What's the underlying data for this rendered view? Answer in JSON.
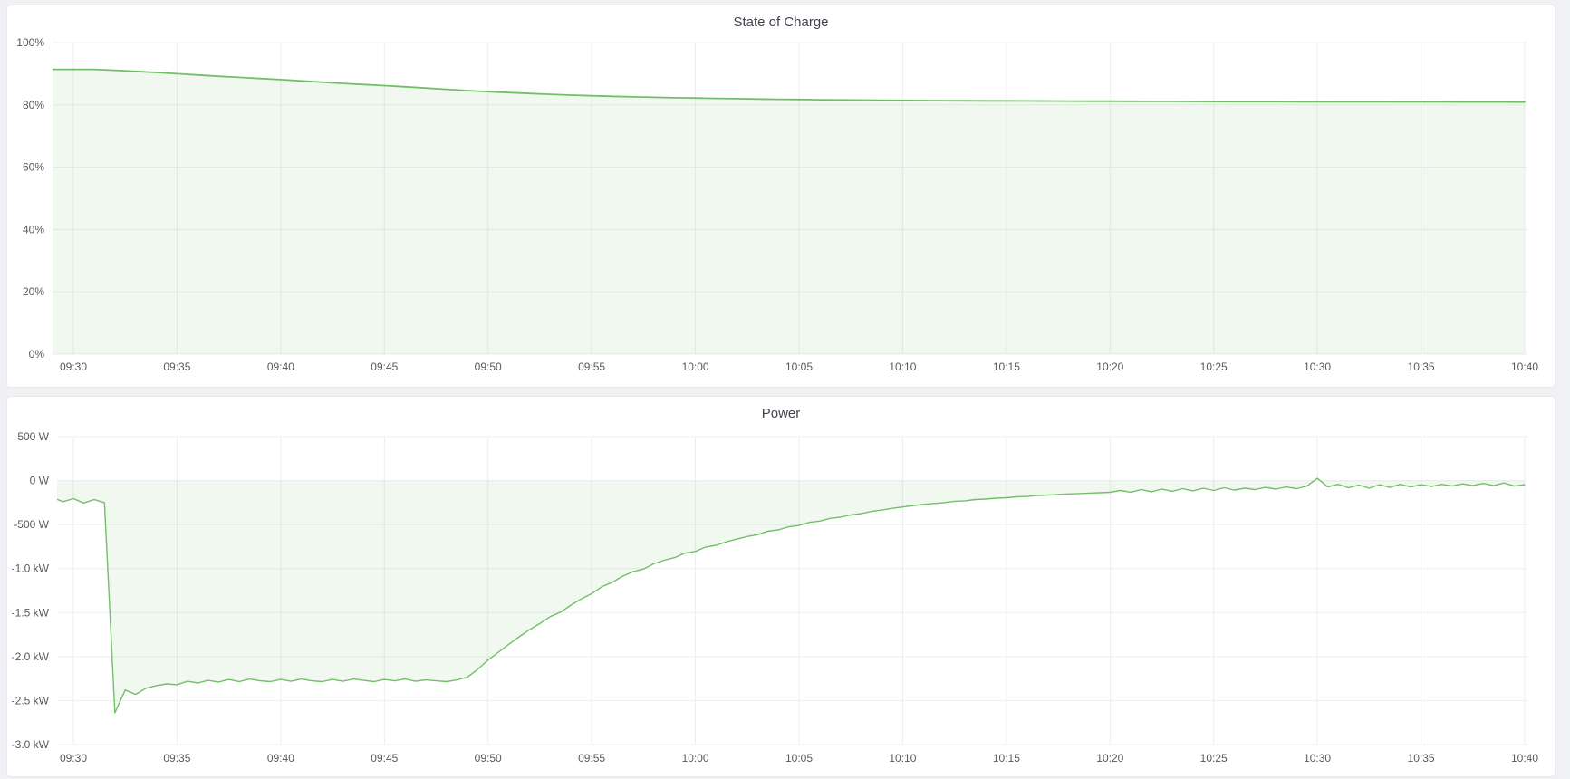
{
  "page": {
    "background_color": "#eff1f5",
    "panel_background": "#ffffff",
    "accent_green": "#73bf69"
  },
  "chart_data": [
    {
      "type": "area",
      "title": "State of Charge",
      "unit": "percent",
      "legend": "none",
      "grid": true,
      "line_color": "#73bf69",
      "fill_color": "rgba(115,191,105,0.10)",
      "y_range": [
        0,
        100
      ],
      "x_range": [
        "09:29",
        "10:40"
      ],
      "x_tick_labels": [
        "09:30",
        "09:35",
        "09:40",
        "09:45",
        "09:50",
        "09:55",
        "10:00",
        "10:05",
        "10:10",
        "10:15",
        "10:20",
        "10:25",
        "10:30",
        "10:35",
        "10:40"
      ],
      "y_ticks": [
        {
          "value": 100,
          "label": "100%"
        },
        {
          "value": 80,
          "label": "80%"
        },
        {
          "value": 60,
          "label": "60%"
        },
        {
          "value": 40,
          "label": "40%"
        },
        {
          "value": 20,
          "label": "20%"
        },
        {
          "value": 0,
          "label": "0%"
        }
      ],
      "series": [
        {
          "name": "State of Charge",
          "points": [
            [
              "09:29",
              91.4
            ],
            [
              "09:30",
              91.4
            ],
            [
              "09:31",
              91.4
            ],
            [
              "09:32",
              91.1
            ],
            [
              "09:33",
              90.75
            ],
            [
              "09:34",
              90.4
            ],
            [
              "09:35",
              90.0
            ],
            [
              "09:36",
              89.6
            ],
            [
              "09:37",
              89.2
            ],
            [
              "09:38",
              88.85
            ],
            [
              "09:39",
              88.45
            ],
            [
              "09:40",
              88.1
            ],
            [
              "09:41",
              87.7
            ],
            [
              "09:42",
              87.3
            ],
            [
              "09:43",
              86.9
            ],
            [
              "09:44",
              86.55
            ],
            [
              "09:45",
              86.2
            ],
            [
              "09:46",
              85.8
            ],
            [
              "09:47",
              85.4
            ],
            [
              "09:48",
              85.0
            ],
            [
              "09:49",
              84.6
            ],
            [
              "09:50",
              84.25
            ],
            [
              "09:51",
              83.95
            ],
            [
              "09:52",
              83.65
            ],
            [
              "09:53",
              83.4
            ],
            [
              "09:54",
              83.15
            ],
            [
              "09:55",
              82.95
            ],
            [
              "09:56",
              82.75
            ],
            [
              "09:57",
              82.6
            ],
            [
              "09:58",
              82.45
            ],
            [
              "09:59",
              82.3
            ],
            [
              "10:00",
              82.2
            ],
            [
              "10:01",
              82.1
            ],
            [
              "10:02",
              82.0
            ],
            [
              "10:03",
              81.9
            ],
            [
              "10:04",
              81.8
            ],
            [
              "10:05",
              81.75
            ],
            [
              "10:06",
              81.65
            ],
            [
              "10:07",
              81.6
            ],
            [
              "10:08",
              81.55
            ],
            [
              "10:09",
              81.5
            ],
            [
              "10:10",
              81.45
            ],
            [
              "10:11",
              81.4
            ],
            [
              "10:12",
              81.38
            ],
            [
              "10:13",
              81.35
            ],
            [
              "10:14",
              81.32
            ],
            [
              "10:15",
              81.3
            ],
            [
              "10:16",
              81.28
            ],
            [
              "10:17",
              81.25
            ],
            [
              "10:18",
              81.23
            ],
            [
              "10:19",
              81.2
            ],
            [
              "10:20",
              81.18
            ],
            [
              "10:21",
              81.16
            ],
            [
              "10:22",
              81.14
            ],
            [
              "10:23",
              81.12
            ],
            [
              "10:24",
              81.1
            ],
            [
              "10:25",
              81.08
            ],
            [
              "10:26",
              81.06
            ],
            [
              "10:27",
              81.05
            ],
            [
              "10:28",
              81.04
            ],
            [
              "10:29",
              81.03
            ],
            [
              "10:30",
              81.02
            ],
            [
              "10:31",
              81.0
            ],
            [
              "10:32",
              80.99
            ],
            [
              "10:33",
              80.98
            ],
            [
              "10:34",
              80.97
            ],
            [
              "10:35",
              80.96
            ],
            [
              "10:36",
              80.95
            ],
            [
              "10:37",
              80.94
            ],
            [
              "10:38",
              80.93
            ],
            [
              "10:39",
              80.92
            ],
            [
              "10:40",
              80.9
            ]
          ]
        }
      ]
    },
    {
      "type": "area",
      "title": "Power",
      "unit": "watt",
      "legend": "none",
      "grid": true,
      "line_color": "#73bf69",
      "fill_color": "rgba(115,191,105,0.10)",
      "y_range": [
        -3000,
        500
      ],
      "x_range": [
        "09:29",
        "10:40"
      ],
      "x_tick_labels": [
        "09:30",
        "09:35",
        "09:40",
        "09:45",
        "09:50",
        "09:55",
        "10:00",
        "10:05",
        "10:10",
        "10:15",
        "10:20",
        "10:25",
        "10:30",
        "10:35",
        "10:40"
      ],
      "y_ticks": [
        {
          "value": 500,
          "label": "500 W"
        },
        {
          "value": 0,
          "label": "0 W"
        },
        {
          "value": -500,
          "label": "-500 W"
        },
        {
          "value": -1000,
          "label": "-1.0 kW"
        },
        {
          "value": -1500,
          "label": "-1.5 kW"
        },
        {
          "value": -2000,
          "label": "-2.0 kW"
        },
        {
          "value": -2500,
          "label": "-2.5 kW"
        },
        {
          "value": -3000,
          "label": "-3.0 kW"
        }
      ],
      "series": [
        {
          "name": "Power",
          "points": [
            [
              "09:29:00",
              -195
            ],
            [
              "09:29:30",
              -240
            ],
            [
              "09:30:00",
              -205
            ],
            [
              "09:30:30",
              -255
            ],
            [
              "09:31:00",
              -215
            ],
            [
              "09:31:30",
              -250
            ],
            [
              "09:32:00",
              -2640
            ],
            [
              "09:32:30",
              -2380
            ],
            [
              "09:33:00",
              -2430
            ],
            [
              "09:33:30",
              -2360
            ],
            [
              "09:34:00",
              -2330
            ],
            [
              "09:34:30",
              -2310
            ],
            [
              "09:35:00",
              -2320
            ],
            [
              "09:35:30",
              -2280
            ],
            [
              "09:36:00",
              -2300
            ],
            [
              "09:36:30",
              -2270
            ],
            [
              "09:37:00",
              -2290
            ],
            [
              "09:37:30",
              -2260
            ],
            [
              "09:38:00",
              -2285
            ],
            [
              "09:38:30",
              -2255
            ],
            [
              "09:39:00",
              -2275
            ],
            [
              "09:39:30",
              -2285
            ],
            [
              "09:40:00",
              -2260
            ],
            [
              "09:40:30",
              -2280
            ],
            [
              "09:41:00",
              -2255
            ],
            [
              "09:41:30",
              -2275
            ],
            [
              "09:42:00",
              -2285
            ],
            [
              "09:42:30",
              -2260
            ],
            [
              "09:43:00",
              -2280
            ],
            [
              "09:43:30",
              -2255
            ],
            [
              "09:44:00",
              -2270
            ],
            [
              "09:44:30",
              -2285
            ],
            [
              "09:45:00",
              -2260
            ],
            [
              "09:45:30",
              -2275
            ],
            [
              "09:46:00",
              -2255
            ],
            [
              "09:46:30",
              -2280
            ],
            [
              "09:47:00",
              -2265
            ],
            [
              "09:47:30",
              -2275
            ],
            [
              "09:48:00",
              -2285
            ],
            [
              "09:48:30",
              -2265
            ],
            [
              "09:49:00",
              -2235
            ],
            [
              "09:49:30",
              -2145
            ],
            [
              "09:50:00",
              -2040
            ],
            [
              "09:50:30",
              -1950
            ],
            [
              "09:51:00",
              -1860
            ],
            [
              "09:51:30",
              -1775
            ],
            [
              "09:52:00",
              -1695
            ],
            [
              "09:52:30",
              -1625
            ],
            [
              "09:53:00",
              -1545
            ],
            [
              "09:53:30",
              -1495
            ],
            [
              "09:54:00",
              -1415
            ],
            [
              "09:54:30",
              -1345
            ],
            [
              "09:55:00",
              -1285
            ],
            [
              "09:55:30",
              -1205
            ],
            [
              "09:56:00",
              -1155
            ],
            [
              "09:56:30",
              -1085
            ],
            [
              "09:57:00",
              -1035
            ],
            [
              "09:57:30",
              -1005
            ],
            [
              "09:58:00",
              -945
            ],
            [
              "09:58:30",
              -905
            ],
            [
              "09:59:00",
              -875
            ],
            [
              "09:59:30",
              -825
            ],
            [
              "10:00:00",
              -805
            ],
            [
              "10:00:30",
              -755
            ],
            [
              "10:01:00",
              -735
            ],
            [
              "10:01:30",
              -695
            ],
            [
              "10:02:00",
              -665
            ],
            [
              "10:02:30",
              -635
            ],
            [
              "10:03:00",
              -615
            ],
            [
              "10:03:30",
              -575
            ],
            [
              "10:04:00",
              -560
            ],
            [
              "10:04:30",
              -525
            ],
            [
              "10:05:00",
              -510
            ],
            [
              "10:05:30",
              -475
            ],
            [
              "10:06:00",
              -460
            ],
            [
              "10:06:30",
              -430
            ],
            [
              "10:07:00",
              -415
            ],
            [
              "10:07:30",
              -390
            ],
            [
              "10:08:00",
              -375
            ],
            [
              "10:08:30",
              -350
            ],
            [
              "10:09:00",
              -335
            ],
            [
              "10:09:30",
              -315
            ],
            [
              "10:10:00",
              -300
            ],
            [
              "10:10:30",
              -285
            ],
            [
              "10:11:00",
              -270
            ],
            [
              "10:11:30",
              -260
            ],
            [
              "10:12:00",
              -250
            ],
            [
              "10:12:30",
              -235
            ],
            [
              "10:13:00",
              -230
            ],
            [
              "10:13:30",
              -215
            ],
            [
              "10:14:00",
              -210
            ],
            [
              "10:14:30",
              -200
            ],
            [
              "10:15:00",
              -195
            ],
            [
              "10:15:30",
              -185
            ],
            [
              "10:16:00",
              -180
            ],
            [
              "10:16:30",
              -170
            ],
            [
              "10:17:00",
              -165
            ],
            [
              "10:17:30",
              -158
            ],
            [
              "10:18:00",
              -152
            ],
            [
              "10:18:30",
              -147
            ],
            [
              "10:19:00",
              -142
            ],
            [
              "10:19:30",
              -138
            ],
            [
              "10:20:00",
              -133
            ],
            [
              "10:20:30",
              -112
            ],
            [
              "10:21:00",
              -132
            ],
            [
              "10:21:30",
              -102
            ],
            [
              "10:22:00",
              -127
            ],
            [
              "10:22:30",
              -97
            ],
            [
              "10:23:00",
              -122
            ],
            [
              "10:23:30",
              -92
            ],
            [
              "10:24:00",
              -117
            ],
            [
              "10:24:30",
              -87
            ],
            [
              "10:25:00",
              -112
            ],
            [
              "10:25:30",
              -82
            ],
            [
              "10:26:00",
              -107
            ],
            [
              "10:26:30",
              -87
            ],
            [
              "10:27:00",
              -102
            ],
            [
              "10:27:30",
              -77
            ],
            [
              "10:28:00",
              -97
            ],
            [
              "10:28:30",
              -72
            ],
            [
              "10:29:00",
              -92
            ],
            [
              "10:29:30",
              -62
            ],
            [
              "10:30:00",
              25
            ],
            [
              "10:30:30",
              -72
            ],
            [
              "10:31:00",
              -42
            ],
            [
              "10:31:30",
              -82
            ],
            [
              "10:32:00",
              -52
            ],
            [
              "10:32:30",
              -87
            ],
            [
              "10:33:00",
              -47
            ],
            [
              "10:33:30",
              -77
            ],
            [
              "10:34:00",
              -42
            ],
            [
              "10:34:30",
              -72
            ],
            [
              "10:35:00",
              -47
            ],
            [
              "10:35:30",
              -67
            ],
            [
              "10:36:00",
              -42
            ],
            [
              "10:36:30",
              -62
            ],
            [
              "10:37:00",
              -37
            ],
            [
              "10:37:30",
              -57
            ],
            [
              "10:38:00",
              -32
            ],
            [
              "10:38:30",
              -57
            ],
            [
              "10:39:00",
              -27
            ],
            [
              "10:39:30",
              -62
            ],
            [
              "10:40:00",
              -47
            ]
          ]
        }
      ]
    }
  ]
}
